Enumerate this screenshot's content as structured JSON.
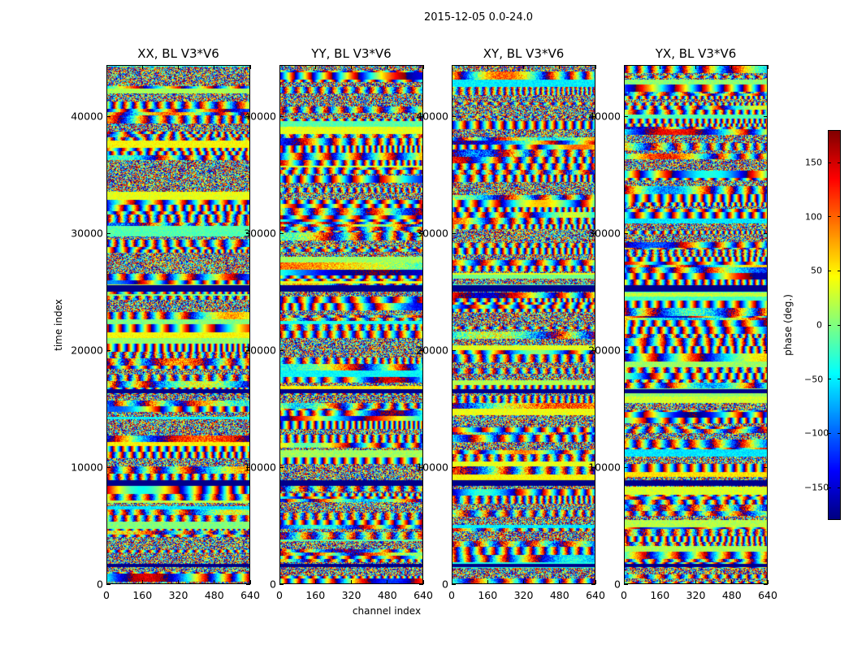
{
  "figure": {
    "suptitle": "2015-12-05 0.0-24.0",
    "ylabel": "time index",
    "xlabel": "channel index",
    "colorbar_label": "phase (deg.)"
  },
  "chart_data": {
    "type": "heatmap",
    "panels": [
      {
        "title": "XX, BL V3*V6"
      },
      {
        "title": "YY, BL V3*V6"
      },
      {
        "title": "XY, BL V3*V6"
      },
      {
        "title": "YX, BL V3*V6"
      }
    ],
    "x_ticks": [
      0,
      160,
      320,
      480,
      640
    ],
    "xlim": [
      0,
      640
    ],
    "y_ticks": [
      0,
      10000,
      20000,
      30000,
      40000
    ],
    "ylim": [
      0,
      44400
    ],
    "colorbar": {
      "colormap": "jet",
      "range": [
        -180,
        180
      ],
      "ticks": [
        -150,
        -100,
        -50,
        0,
        50,
        100,
        150
      ],
      "tick_labels": [
        "−150",
        "−100",
        "−50",
        "0",
        "50",
        "100",
        "150"
      ]
    },
    "flagged_time_bands": [
      [
        8450,
        8900
      ],
      [
        25100,
        25600
      ],
      [
        16400,
        16700
      ],
      [
        1500,
        1750
      ]
    ],
    "grid": false
  }
}
